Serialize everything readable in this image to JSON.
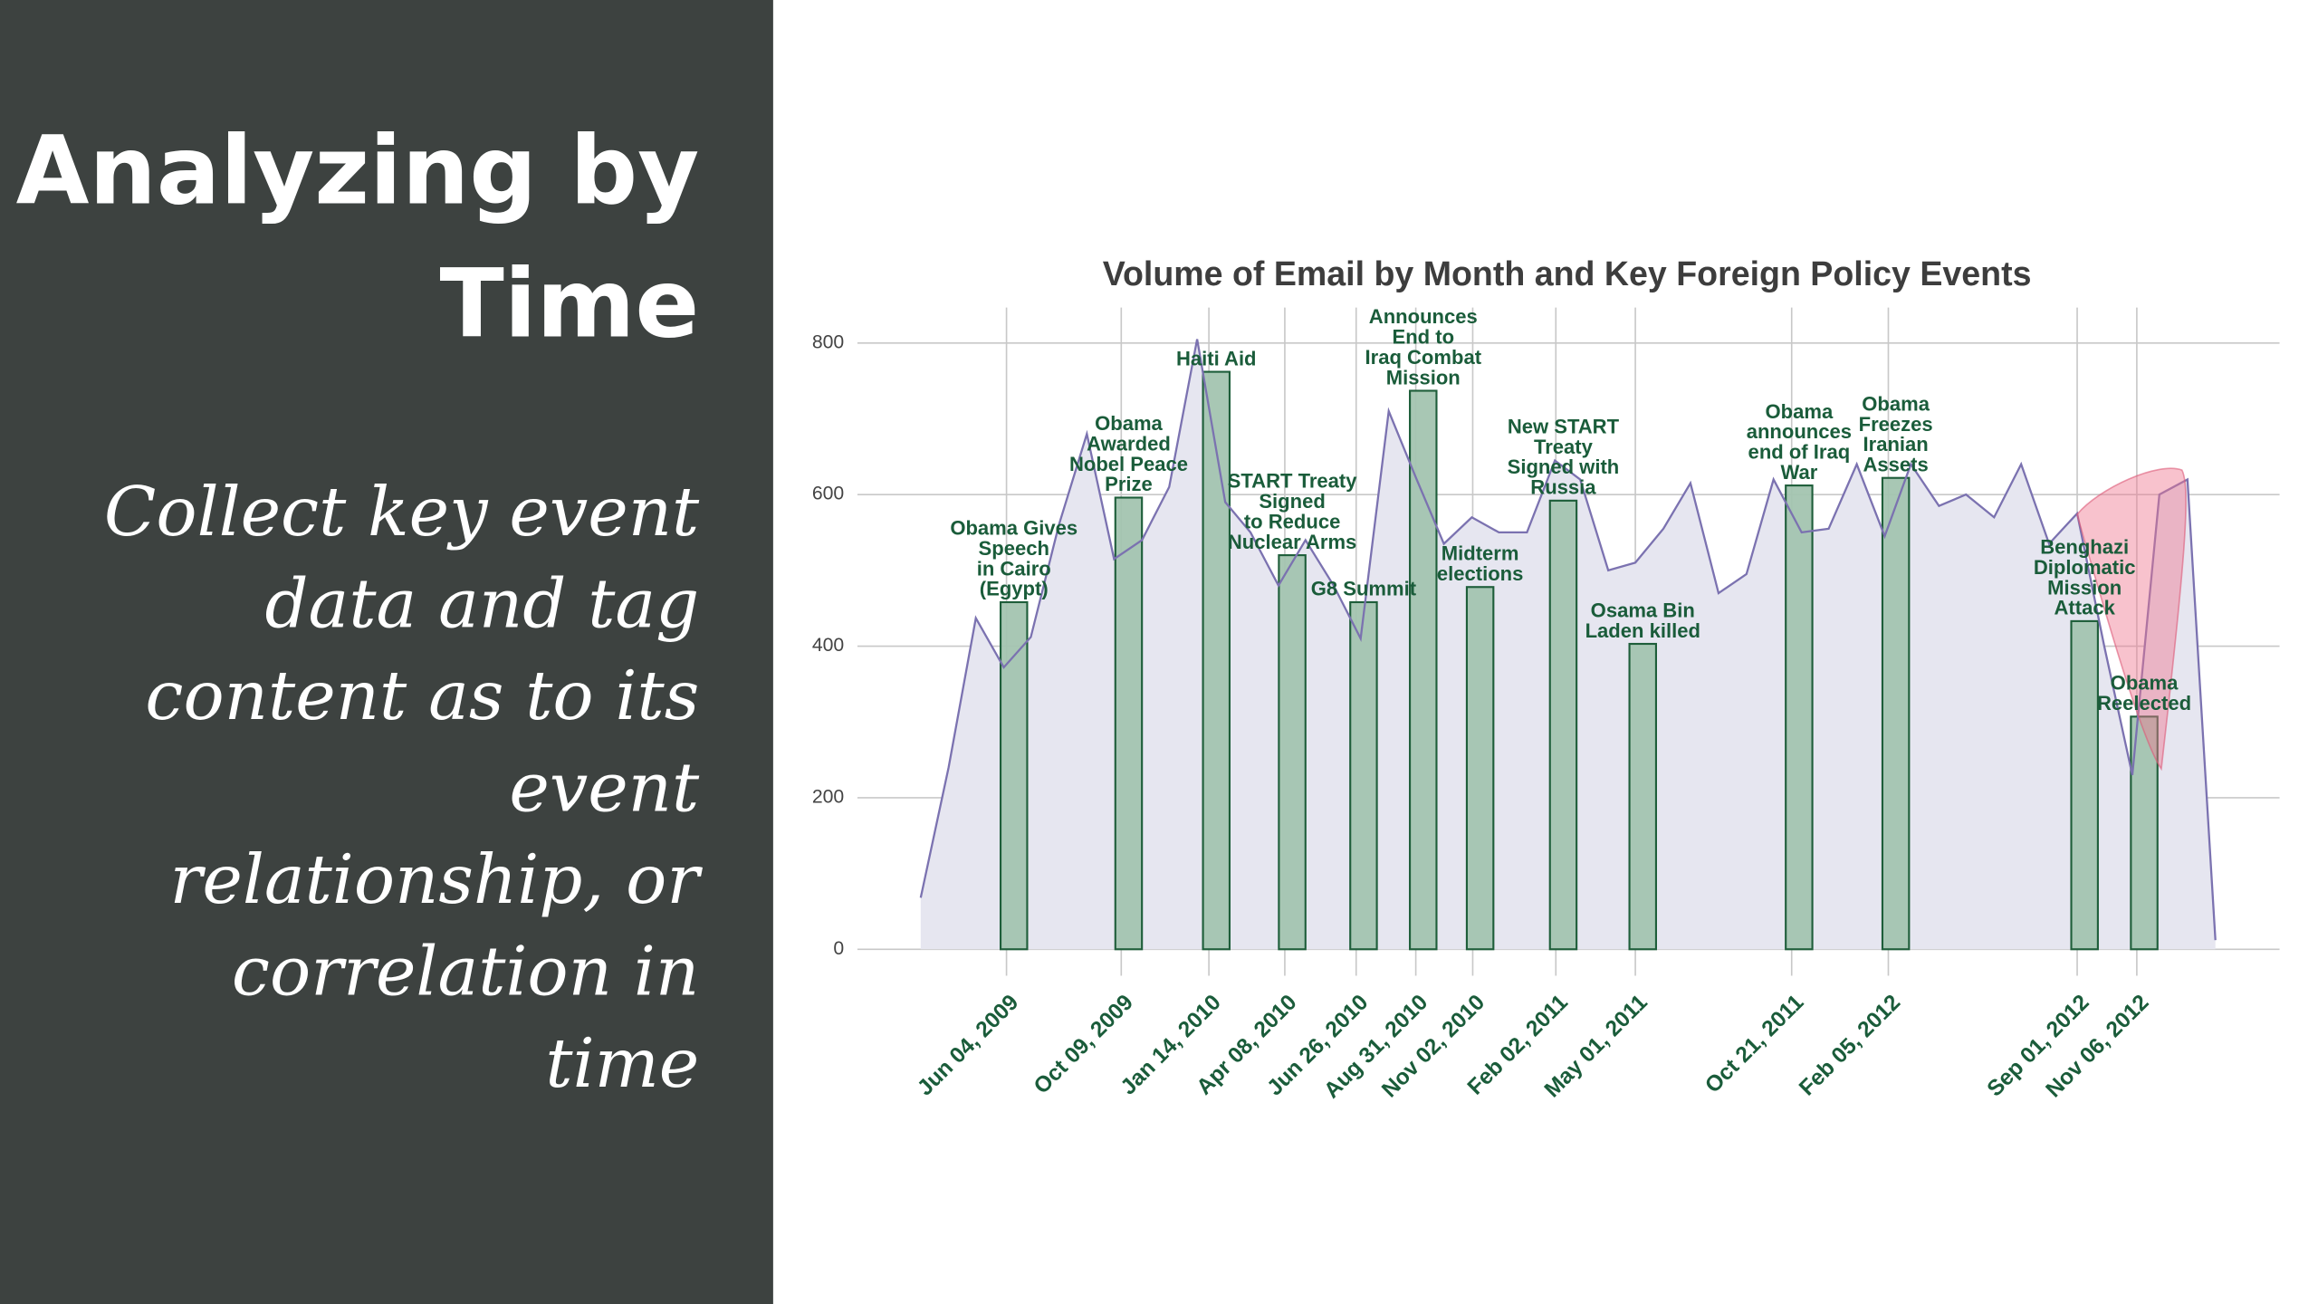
{
  "slide": {
    "title_lines": [
      "Analyzing by",
      "Time"
    ],
    "body_lines": [
      "Collect key event",
      "data and tag",
      "content as to its",
      "event",
      "relationship, or",
      "correlation in",
      "time"
    ]
  },
  "chart_data": {
    "type": "area",
    "title": "Volume of Email by Month and Key Foreign Policy Events",
    "x": [
      "2009-03",
      "2009-04",
      "2009-05",
      "2009-06",
      "2009-07",
      "2009-08",
      "2009-09",
      "2009-10",
      "2009-11",
      "2009-12",
      "2010-01",
      "2010-02",
      "2010-03",
      "2010-04",
      "2010-05",
      "2010-06",
      "2010-07",
      "2010-08",
      "2010-09",
      "2010-10",
      "2010-11",
      "2010-12",
      "2011-01",
      "2011-02",
      "2011-03",
      "2011-04",
      "2011-05",
      "2011-06",
      "2011-07",
      "2011-08",
      "2011-09",
      "2011-10",
      "2011-11",
      "2011-12",
      "2012-01",
      "2012-02",
      "2012-03",
      "2012-04",
      "2012-05",
      "2012-06",
      "2012-07",
      "2012-08",
      "2012-09",
      "2012-10",
      "2012-11",
      "2012-12",
      "2013-01",
      "2013-02"
    ],
    "values": [
      68,
      240,
      437,
      372,
      412,
      560,
      680,
      515,
      540,
      610,
      805,
      590,
      550,
      480,
      540,
      480,
      410,
      710,
      620,
      535,
      570,
      550,
      550,
      645,
      620,
      500,
      510,
      555,
      615,
      470,
      495,
      620,
      550,
      555,
      640,
      545,
      640,
      585,
      600,
      570,
      640,
      535,
      575,
      400,
      230,
      600,
      620,
      12
    ],
    "line_color": "#7b72b0",
    "area_color": "#e6e6f0",
    "events": {
      "values": [
        458,
        596,
        762,
        520,
        458,
        737,
        478,
        592,
        403,
        612,
        622,
        433,
        307
      ],
      "labels": [
        [
          "Obama Gives",
          "Speech",
          "in Cairo",
          "(Egypt)"
        ],
        [
          "Obama",
          "Awarded",
          "Nobel Peace",
          "Prize"
        ],
        [
          "Haiti Aid"
        ],
        [
          "START Treaty",
          "Signed",
          "to Reduce",
          "Nuclear Arms"
        ],
        [
          "G8 Summit"
        ],
        [
          "Announces",
          "End to",
          "Iraq Combat",
          "Mission"
        ],
        [
          "Midterm",
          "elections"
        ],
        [
          "New START",
          "Treaty",
          "Signed with",
          "Russia"
        ],
        [
          "Osama Bin",
          "Laden killed"
        ],
        [
          "Obama",
          "announces",
          "end of Iraq",
          "War"
        ],
        [
          "Obama",
          "Freezes",
          "Iranian",
          "Assets"
        ],
        [
          "Benghazi",
          "Diplomatic",
          "Mission",
          "Attack"
        ],
        [
          "Obama",
          "Reelected"
        ]
      ],
      "color": "#a3c4b0",
      "edge_color": "#1e5e3a"
    },
    "xlim": [
      "2008-12-21",
      "2013-04-13"
    ],
    "xticks": [
      {
        "value": "2009-06-04",
        "label": "Jun 04, 2009"
      },
      {
        "value": "2009-10-09",
        "label": "Oct 09, 2009"
      },
      {
        "value": "2010-01-14",
        "label": "Jan 14, 2010"
      },
      {
        "value": "2010-04-08",
        "label": "Apr 08, 2010"
      },
      {
        "value": "2010-06-26",
        "label": "Jun 26, 2010"
      },
      {
        "value": "2010-08-31",
        "label": "Aug 31, 2010"
      },
      {
        "value": "2010-11-02",
        "label": "Nov 02, 2010"
      },
      {
        "value": "2011-02-02",
        "label": "Feb 02, 2011"
      },
      {
        "value": "2011-05-01",
        "label": "May 01, 2011"
      },
      {
        "value": "2011-10-21",
        "label": "Oct 21, 2011"
      },
      {
        "value": "2012-02-05",
        "label": "Feb 05, 2012"
      },
      {
        "value": "2012-09-01",
        "label": "Sep 01, 2012"
      },
      {
        "value": "2012-11-06",
        "label": "Nov 06, 2012"
      }
    ],
    "ylim": [
      -35,
      840
    ],
    "yticks": [
      0,
      200,
      400,
      600,
      800
    ],
    "grid": true
  }
}
